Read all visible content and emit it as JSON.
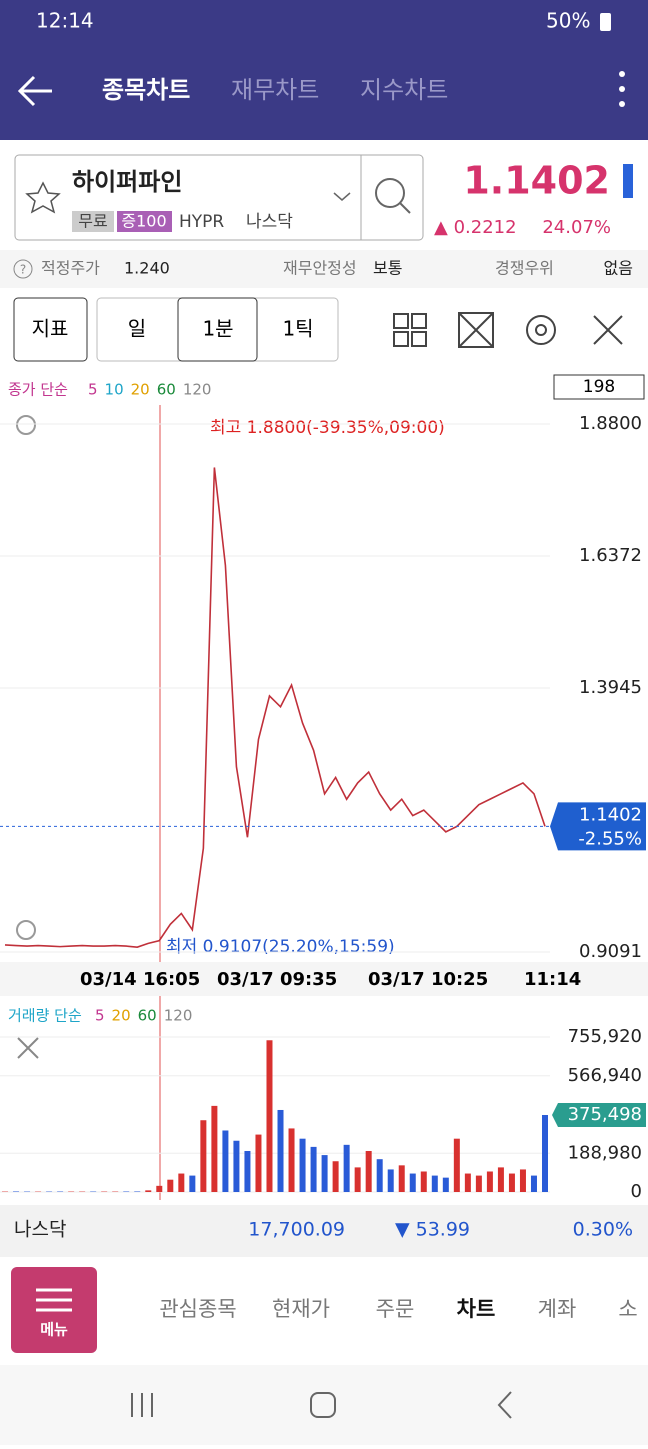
{
  "status_bar": {
    "time": "12:14",
    "battery": "50%"
  },
  "header": {
    "tabs": [
      "종목차트",
      "재무차트",
      "지수차트"
    ]
  },
  "stock": {
    "name": "하이퍼파인",
    "tags": [
      "무료",
      "증100"
    ],
    "ticker": "HYPR",
    "market": "나스닥",
    "price": "1.1402",
    "change": "▲ 0.2212",
    "change_rate": "24.07%"
  },
  "valuation": {
    "fair_price_label": "적정주가",
    "fair_price": "1.240",
    "stability_label": "재무안정성",
    "stability": "보통",
    "moat_label": "경쟁우위",
    "moat": "없음"
  },
  "toolbar": {
    "indicator": "지표",
    "periods": [
      "일",
      "1분",
      "1틱"
    ]
  },
  "price_chart": {
    "legend_title": "종가 단순",
    "ma": [
      {
        "label": "5",
        "color": "#c2368f"
      },
      {
        "label": "10",
        "color": "#1ea5c8"
      },
      {
        "label": "20",
        "color": "#e0a000"
      },
      {
        "label": "60",
        "color": "#1a8a3a"
      },
      {
        "label": "120",
        "color": "#888888"
      }
    ],
    "count": "198",
    "ylim": [
      0.9091,
      1.88
    ],
    "yticks": [
      {
        "value": 1.88,
        "label": "1.8800"
      },
      {
        "value": 1.6372,
        "label": "1.6372"
      },
      {
        "value": 1.3945,
        "label": "1.3945"
      },
      {
        "value": 0.9091,
        "label": "0.9091"
      }
    ],
    "close": [
      0.922,
      0.921,
      0.92,
      0.921,
      0.92,
      0.919,
      0.92,
      0.921,
      0.92,
      0.92,
      0.921,
      0.92,
      0.918,
      0.925,
      0.93,
      0.96,
      0.98,
      0.95,
      1.1,
      1.8,
      1.62,
      1.25,
      1.12,
      1.3,
      1.38,
      1.36,
      1.4,
      1.33,
      1.28,
      1.2,
      1.23,
      1.19,
      1.22,
      1.24,
      1.2,
      1.17,
      1.19,
      1.16,
      1.17,
      1.15,
      1.13,
      1.14,
      1.16,
      1.18,
      1.19,
      1.2,
      1.21,
      1.22,
      1.2,
      1.14
    ],
    "high_note": "최고 1.8800(-39.35%,09:00)",
    "low_note": "최저 0.9107(25.20%,15:59)",
    "current": {
      "value": 1.1402,
      "label": "1.1402",
      "change": "-2.55%"
    },
    "time_labels": [
      "03/14 16:05",
      "03/17 09:35",
      "03/17 10:25",
      "11:14"
    ]
  },
  "volume_chart": {
    "legend_title": "거래량 단순",
    "ma": [
      {
        "label": "5",
        "color": "#c2368f"
      },
      {
        "label": "20",
        "color": "#e0a000"
      },
      {
        "label": "60",
        "color": "#1a8a3a"
      },
      {
        "label": "120",
        "color": "#888888"
      }
    ],
    "ylim": [
      0,
      755920
    ],
    "yticks": [
      {
        "value": 755920,
        "label": "755,920"
      },
      {
        "value": 566940,
        "label": "566,940"
      },
      {
        "value": 188980,
        "label": "188,980"
      },
      0
    ],
    "values": [
      2000,
      2500,
      2000,
      1800,
      2000,
      2200,
      2000,
      1900,
      2100,
      2000,
      2000,
      2300,
      2500,
      8000,
      30000,
      60000,
      90000,
      80000,
      350000,
      420000,
      300000,
      250000,
      200000,
      280000,
      740000,
      400000,
      310000,
      260000,
      220000,
      180000,
      150000,
      230000,
      120000,
      200000,
      160000,
      110000,
      130000,
      90000,
      100000,
      80000,
      70000,
      260000,
      90000,
      80000,
      100000,
      120000,
      90000,
      110000,
      80000,
      375498
    ],
    "current": {
      "value": 375498,
      "label": "375,498"
    }
  },
  "index_bar": {
    "name": "나스닥",
    "value": "17,700.09",
    "change": "▼ 53.99",
    "rate": "0.30%"
  },
  "nav": {
    "menu": "메뉴",
    "items": [
      "관심종목",
      "현재가",
      "주문",
      "차트",
      "계좌",
      "소"
    ]
  }
}
